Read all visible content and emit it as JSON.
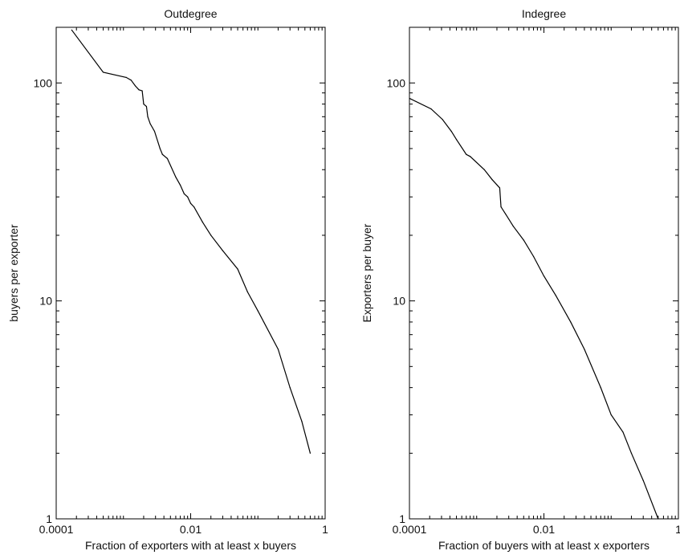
{
  "chart_data": [
    {
      "type": "line",
      "title": "Outdegree",
      "xlabel": "Fraction of exporters with at least x buyers",
      "ylabel": "buyers per exporter",
      "xscale": "log",
      "yscale": "log",
      "xlim": [
        0.0001,
        1
      ],
      "ylim": [
        1,
        180
      ],
      "xticks": [
        0.0001,
        0.01,
        1
      ],
      "xtick_labels": [
        "0.0001",
        "0.01",
        "1"
      ],
      "yticks": [
        1,
        10,
        100
      ],
      "ytick_labels": [
        "1",
        "10",
        "100"
      ],
      "grid": false,
      "series": [
        {
          "x": [
            0.00017,
            0.0005,
            0.0011,
            0.0013,
            0.0015,
            0.0017,
            0.0019,
            0.002,
            0.0022,
            0.0023,
            0.0025,
            0.0029,
            0.0035,
            0.0038,
            0.0045,
            0.006,
            0.007,
            0.008,
            0.009,
            0.01,
            0.0112,
            0.015,
            0.02,
            0.03,
            0.05,
            0.07,
            0.1,
            0.2,
            0.3,
            0.45,
            0.6
          ],
          "y": [
            175,
            112,
            106,
            103,
            97,
            93,
            92,
            80,
            78,
            70,
            65,
            60,
            50,
            47,
            45,
            37,
            34,
            31,
            30,
            28,
            27,
            23,
            20,
            17,
            14,
            11,
            9,
            6,
            4,
            2.8,
            2
          ]
        }
      ]
    },
    {
      "type": "line",
      "title": "Indegree",
      "xlabel": "Fraction of buyers with at least x exporters",
      "ylabel": "Exporters per buyer",
      "xscale": "log",
      "yscale": "log",
      "xlim": [
        0.0001,
        1
      ],
      "ylim": [
        1,
        180
      ],
      "xticks": [
        0.0001,
        0.01,
        1
      ],
      "xtick_labels": [
        "0.0001",
        "0.01",
        "1"
      ],
      "yticks": [
        1,
        10,
        100
      ],
      "ytick_labels": [
        "1",
        "10",
        "100"
      ],
      "grid": false,
      "series": [
        {
          "x": [
            0.0001,
            0.00021,
            0.00031,
            0.00042,
            0.0005,
            0.0007,
            0.0008,
            0.0013,
            0.0017,
            0.0022,
            0.0023,
            0.0027,
            0.0035,
            0.005,
            0.007,
            0.01,
            0.015,
            0.025,
            0.04,
            0.07,
            0.1,
            0.15,
            0.2,
            0.3,
            0.5
          ],
          "y": [
            85,
            76,
            68,
            60,
            55,
            47,
            46,
            40,
            36,
            33,
            27,
            25,
            22,
            19,
            16,
            13,
            10.6,
            8,
            6,
            4,
            3,
            2.5,
            2,
            1.5,
            1
          ]
        }
      ]
    }
  ]
}
